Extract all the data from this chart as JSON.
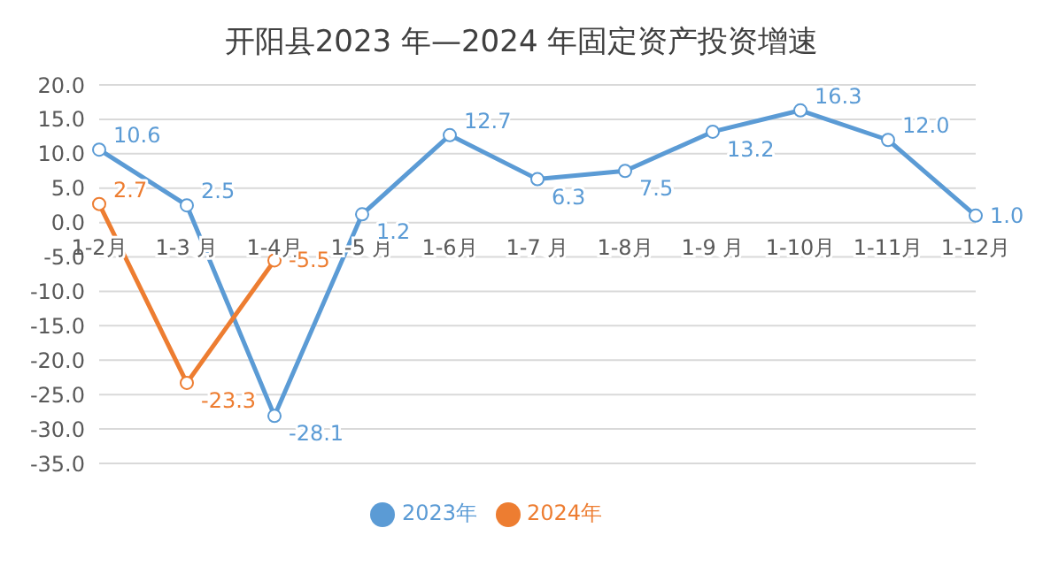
{
  "chart_data": {
    "type": "line",
    "title": "开阳县2023 年—2024 年固定资产投资增速",
    "categories": [
      "1-2月",
      "1-3 月",
      "1-4月",
      "1-5 月",
      "1-6月",
      "1-7 月",
      "1-8月",
      "1-9 月",
      "1-10月",
      "1-11月",
      "1-12月"
    ],
    "series": [
      {
        "name": "2023年",
        "color": "#5b9bd5",
        "values": [
          10.6,
          2.5,
          -28.1,
          1.2,
          12.7,
          6.3,
          7.5,
          13.2,
          16.3,
          12.0,
          1.0
        ],
        "value_labels": [
          "10.6",
          "2.5",
          "-28.1",
          "1.2",
          "12.7",
          "6.3",
          "7.5",
          "13.2",
          "16.3",
          "12.0",
          "1.0"
        ]
      },
      {
        "name": "2024年",
        "color": "#ed7d31",
        "values": [
          2.7,
          -23.3,
          -5.5,
          null,
          null,
          null,
          null,
          null,
          null,
          null,
          null
        ],
        "value_labels": [
          "2.7",
          "-23.3",
          "-5.5",
          null,
          null,
          null,
          null,
          null,
          null,
          null,
          null
        ]
      }
    ],
    "ylim": [
      -35,
      20
    ],
    "yticks": [
      {
        "value": 20,
        "label": "20.0"
      },
      {
        "value": 15,
        "label": "15.0"
      },
      {
        "value": 10,
        "label": "10.0"
      },
      {
        "value": 5,
        "label": "5.0"
      },
      {
        "value": 0,
        "label": "0.0"
      },
      {
        "value": -5,
        "label": "-5.0"
      },
      {
        "value": -10,
        "label": "-10.0"
      },
      {
        "value": -15,
        "label": "-15.0"
      },
      {
        "value": -20,
        "label": "-20.0"
      },
      {
        "value": -25,
        "label": "-25.0"
      },
      {
        "value": -30,
        "label": "-30.0"
      },
      {
        "value": -35,
        "label": "-35.0"
      }
    ],
    "grid": "y",
    "legend": "bottom",
    "marker": "circle",
    "line_style": "solid"
  }
}
